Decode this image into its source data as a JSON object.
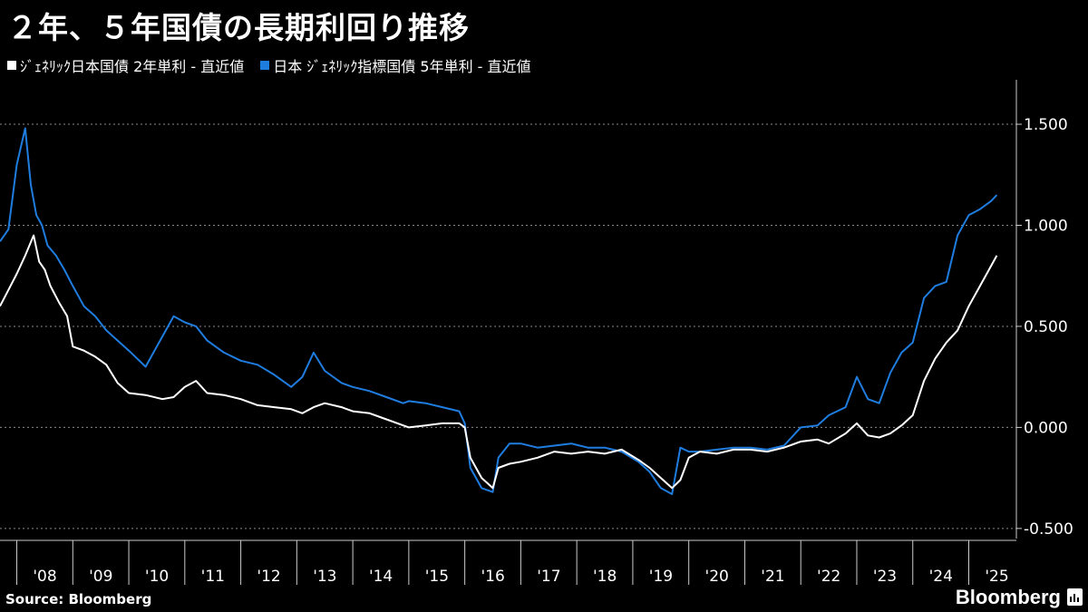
{
  "title": "２年、５年国債の長期利回り推移",
  "legend": [
    {
      "label": "ｼﾞｪﾈﾘｯｸ日本国債 2年単利 - 直近値",
      "color": "#ffffff"
    },
    {
      "label": "日本 ｼﾞｪﾈﾘｯｸ指標国債 5年単利 - 直近値",
      "color": "#1f7de0"
    }
  ],
  "source": "Source: Bloomberg",
  "brand": "Bloomberg",
  "chart_data": {
    "type": "line",
    "y_ticks": [
      "1.500",
      "1.000",
      "0.500",
      "0.000",
      "-0.500"
    ],
    "y_tick_values": [
      1.5,
      1.0,
      0.5,
      0.0,
      -0.5
    ],
    "ylim": [
      -0.55,
      1.72
    ],
    "xlim": [
      2007.7,
      2025.85
    ],
    "x_tick_labels": [
      "'08",
      "'09",
      "'10",
      "'11",
      "'12",
      "'13",
      "'14",
      "'15",
      "'16",
      "'17",
      "'18",
      "'19",
      "'20",
      "'21",
      "'22",
      "'23",
      "'24",
      "'25"
    ],
    "x_tick_values": [
      2008,
      2009,
      2010,
      2011,
      2012,
      2013,
      2014,
      2015,
      2016,
      2017,
      2018,
      2019,
      2020,
      2021,
      2022,
      2023,
      2024,
      2025
    ],
    "series": [
      {
        "name": "ｼﾞｪﾈﾘｯｸ日本国債 2年単利 - 直近値",
        "color": "#ffffff",
        "x": [
          2007.7,
          2007.85,
          2008.0,
          2008.15,
          2008.3,
          2008.4,
          2008.5,
          2008.6,
          2008.75,
          2008.9,
          2009.0,
          2009.2,
          2009.4,
          2009.6,
          2009.8,
          2010.0,
          2010.3,
          2010.6,
          2010.8,
          2011.0,
          2011.2,
          2011.4,
          2011.7,
          2012.0,
          2012.3,
          2012.6,
          2012.9,
          2013.1,
          2013.3,
          2013.5,
          2013.8,
          2014.0,
          2014.3,
          2014.6,
          2014.9,
          2015.0,
          2015.3,
          2015.6,
          2015.9,
          2016.0,
          2016.1,
          2016.3,
          2016.5,
          2016.6,
          2016.8,
          2017.0,
          2017.3,
          2017.6,
          2017.9,
          2018.2,
          2018.5,
          2018.8,
          2019.1,
          2019.3,
          2019.5,
          2019.7,
          2019.85,
          2020.0,
          2020.2,
          2020.5,
          2020.8,
          2021.1,
          2021.4,
          2021.7,
          2022.0,
          2022.3,
          2022.5,
          2022.8,
          2023.0,
          2023.2,
          2023.4,
          2023.6,
          2023.8,
          2024.0,
          2024.2,
          2024.4,
          2024.6,
          2024.8,
          2025.0,
          2025.2,
          2025.4,
          2025.5
        ],
        "y": [
          0.6,
          0.68,
          0.76,
          0.85,
          0.95,
          0.82,
          0.78,
          0.7,
          0.62,
          0.55,
          0.4,
          0.38,
          0.35,
          0.31,
          0.22,
          0.17,
          0.16,
          0.14,
          0.15,
          0.2,
          0.23,
          0.17,
          0.16,
          0.14,
          0.11,
          0.1,
          0.09,
          0.07,
          0.1,
          0.12,
          0.1,
          0.08,
          0.07,
          0.04,
          0.01,
          0.0,
          0.01,
          0.02,
          0.02,
          0.0,
          -0.15,
          -0.25,
          -0.3,
          -0.2,
          -0.18,
          -0.17,
          -0.15,
          -0.12,
          -0.13,
          -0.12,
          -0.13,
          -0.11,
          -0.16,
          -0.2,
          -0.25,
          -0.3,
          -0.26,
          -0.15,
          -0.12,
          -0.13,
          -0.11,
          -0.11,
          -0.12,
          -0.1,
          -0.07,
          -0.06,
          -0.08,
          -0.03,
          0.02,
          -0.04,
          -0.05,
          -0.03,
          0.01,
          0.06,
          0.23,
          0.34,
          0.42,
          0.48,
          0.6,
          0.7,
          0.8,
          0.85
        ]
      },
      {
        "name": "日本 ｼﾞｪﾈﾘｯｸ指標国債 5年単利 - 直近値",
        "color": "#1f7de0",
        "x": [
          2007.7,
          2007.85,
          2008.0,
          2008.15,
          2008.25,
          2008.35,
          2008.45,
          2008.55,
          2008.7,
          2008.85,
          2009.0,
          2009.2,
          2009.4,
          2009.6,
          2009.8,
          2010.0,
          2010.3,
          2010.6,
          2010.8,
          2011.0,
          2011.2,
          2011.4,
          2011.7,
          2012.0,
          2012.3,
          2012.6,
          2012.9,
          2013.1,
          2013.3,
          2013.5,
          2013.8,
          2014.0,
          2014.3,
          2014.6,
          2014.9,
          2015.0,
          2015.3,
          2015.6,
          2015.9,
          2016.0,
          2016.1,
          2016.3,
          2016.5,
          2016.6,
          2016.8,
          2017.0,
          2017.3,
          2017.6,
          2017.9,
          2018.2,
          2018.5,
          2018.8,
          2019.1,
          2019.3,
          2019.5,
          2019.7,
          2019.85,
          2020.0,
          2020.2,
          2020.5,
          2020.8,
          2021.1,
          2021.4,
          2021.7,
          2022.0,
          2022.3,
          2022.5,
          2022.8,
          2023.0,
          2023.2,
          2023.4,
          2023.6,
          2023.8,
          2024.0,
          2024.2,
          2024.4,
          2024.6,
          2024.8,
          2025.0,
          2025.2,
          2025.4,
          2025.5
        ],
        "y": [
          0.92,
          0.98,
          1.3,
          1.48,
          1.2,
          1.05,
          1.0,
          0.9,
          0.85,
          0.78,
          0.7,
          0.6,
          0.55,
          0.48,
          0.43,
          0.38,
          0.3,
          0.45,
          0.55,
          0.52,
          0.5,
          0.43,
          0.37,
          0.33,
          0.31,
          0.26,
          0.2,
          0.25,
          0.37,
          0.28,
          0.22,
          0.2,
          0.18,
          0.15,
          0.12,
          0.13,
          0.12,
          0.1,
          0.08,
          0.02,
          -0.2,
          -0.3,
          -0.32,
          -0.15,
          -0.08,
          -0.08,
          -0.1,
          -0.09,
          -0.08,
          -0.1,
          -0.1,
          -0.12,
          -0.17,
          -0.22,
          -0.3,
          -0.33,
          -0.1,
          -0.12,
          -0.12,
          -0.11,
          -0.1,
          -0.1,
          -0.11,
          -0.09,
          0.0,
          0.01,
          0.06,
          0.1,
          0.25,
          0.14,
          0.12,
          0.27,
          0.37,
          0.42,
          0.64,
          0.7,
          0.72,
          0.95,
          1.05,
          1.08,
          1.12,
          1.15
        ]
      }
    ]
  }
}
